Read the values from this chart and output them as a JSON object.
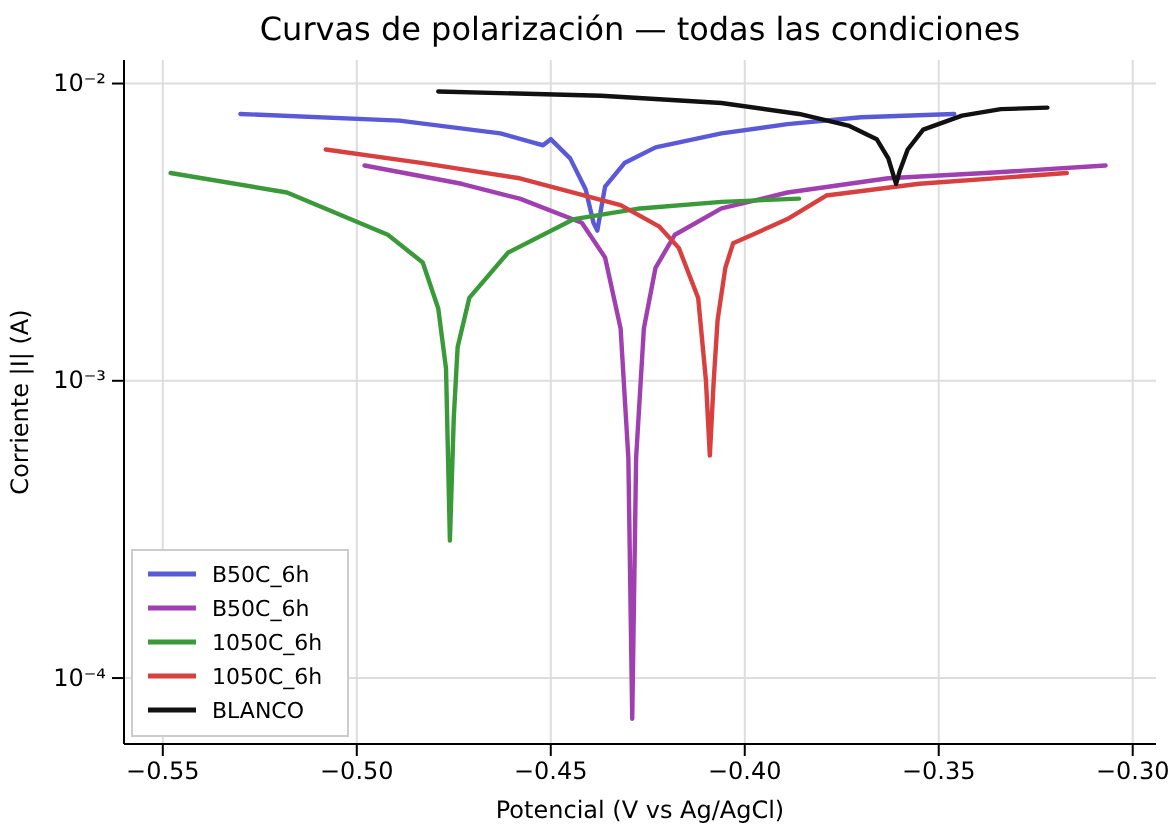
{
  "chart_data": {
    "type": "line",
    "title": "Curvas de polarización — todas las condiciones",
    "xlabel": "Potencial (V vs Ag/AgCl)",
    "ylabel": "Corriente |I| (A)",
    "log": "y",
    "grid": true,
    "legend": "bottom left",
    "line_style": "solid",
    "marker": "none",
    "xlim": [
      -0.56,
      -0.294
    ],
    "xticks": [
      {
        "value": -0.55,
        "label": "−0.55"
      },
      {
        "value": -0.5,
        "label": "−0.50"
      },
      {
        "value": -0.45,
        "label": "−0.45"
      },
      {
        "value": -0.4,
        "label": "−0.40"
      },
      {
        "value": -0.35,
        "label": "−0.35"
      },
      {
        "value": -0.3,
        "label": "−0.30"
      }
    ],
    "ylim": [
      6e-05,
      0.012
    ],
    "yticks": [
      {
        "value": 0.0001,
        "label": "10⁻⁴"
      },
      {
        "value": 0.001,
        "label": "10⁻³"
      },
      {
        "value": 0.01,
        "label": "10⁻²"
      }
    ],
    "series": [
      {
        "name": "B50C_6h",
        "color": "#5a5ad8",
        "x": [
          -0.53,
          -0.489,
          -0.463,
          -0.454,
          -0.452,
          -0.45,
          -0.445,
          -0.441,
          -0.439,
          -0.438,
          -0.437,
          -0.436,
          -0.431,
          -0.423,
          -0.406,
          -0.389,
          -0.37,
          -0.346
        ],
        "values": [
          0.0079,
          0.0075,
          0.0068,
          0.0063,
          0.0062,
          0.0065,
          0.0056,
          0.0044,
          0.0034,
          0.0032,
          0.0038,
          0.0045,
          0.0054,
          0.0061,
          0.0068,
          0.0073,
          0.0077,
          0.0079
        ]
      },
      {
        "name": "B50C_6h",
        "color": "#a040b0",
        "x": [
          -0.498,
          -0.473,
          -0.458,
          -0.442,
          -0.436,
          -0.432,
          -0.43,
          -0.429,
          -0.428,
          -0.426,
          -0.423,
          -0.418,
          -0.406,
          -0.389,
          -0.363,
          -0.338,
          -0.307
        ],
        "values": [
          0.0053,
          0.0046,
          0.0041,
          0.0034,
          0.0026,
          0.0015,
          0.00055,
          7.3e-05,
          0.00055,
          0.0015,
          0.0024,
          0.0031,
          0.0038,
          0.0043,
          0.0048,
          0.005,
          0.0053
        ]
      },
      {
        "name": "1050C_6h",
        "color": "#3a9a3a",
        "x": [
          -0.548,
          -0.518,
          -0.492,
          -0.483,
          -0.479,
          -0.477,
          -0.476,
          -0.475,
          -0.474,
          -0.471,
          -0.461,
          -0.444,
          -0.427,
          -0.406,
          -0.386
        ],
        "values": [
          0.005,
          0.0043,
          0.0031,
          0.0025,
          0.00175,
          0.0011,
          0.00029,
          0.00075,
          0.0013,
          0.0019,
          0.0027,
          0.0035,
          0.0038,
          0.004,
          0.0041
        ]
      },
      {
        "name": "1050C_6h",
        "color": "#d84040",
        "x": [
          -0.508,
          -0.483,
          -0.458,
          -0.432,
          -0.422,
          -0.417,
          -0.412,
          -0.41,
          -0.409,
          -0.408,
          -0.407,
          -0.405,
          -0.403,
          -0.389,
          -0.379,
          -0.355,
          -0.317
        ],
        "values": [
          0.006,
          0.0054,
          0.0048,
          0.0039,
          0.0033,
          0.0028,
          0.0019,
          0.001,
          0.00056,
          0.001,
          0.0016,
          0.0024,
          0.0029,
          0.0035,
          0.0042,
          0.0046,
          0.005
        ]
      },
      {
        "name": "BLANCO",
        "color": "#111111",
        "x": [
          -0.479,
          -0.437,
          -0.406,
          -0.386,
          -0.373,
          -0.366,
          -0.363,
          -0.361,
          -0.36,
          -0.358,
          -0.354,
          -0.344,
          -0.334,
          -0.322
        ],
        "values": [
          0.0094,
          0.0091,
          0.0086,
          0.0079,
          0.0072,
          0.0065,
          0.0056,
          0.0046,
          0.0051,
          0.006,
          0.007,
          0.0078,
          0.0082,
          0.0083
        ]
      }
    ]
  }
}
